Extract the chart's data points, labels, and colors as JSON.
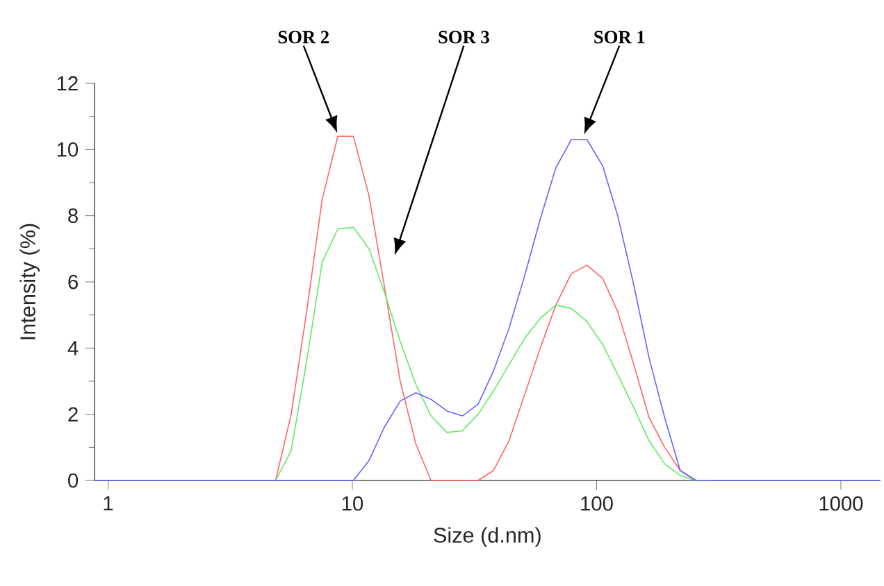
{
  "chart_data": {
    "type": "line",
    "xlabel": "Size (d.nm)",
    "ylabel": "Intensity (%)",
    "log": "x",
    "xlim": [
      0.88,
      1450
    ],
    "xticks": [
      1,
      10,
      100,
      1000
    ],
    "ylim": [
      0,
      12
    ],
    "yticks": [
      0,
      2,
      4,
      6,
      8,
      10,
      12
    ],
    "series": [
      {
        "color": "#ff6464",
        "x": [
          4.85,
          5.62,
          6.5,
          7.53,
          8.72,
          10.1,
          11.7,
          13.5,
          15.7,
          18.2,
          21.0,
          24.4,
          28.2,
          32.7,
          37.8,
          43.8,
          50.8,
          58.8,
          68.1,
          78.8,
          91.3,
          106,
          122,
          142,
          164,
          190,
          220,
          255
        ],
        "values": [
          0,
          2.0,
          5.1,
          8.5,
          10.4,
          10.4,
          8.6,
          5.9,
          3.0,
          1.1,
          0,
          0,
          0,
          0,
          0.3,
          1.2,
          2.6,
          4.0,
          5.3,
          6.25,
          6.5,
          6.1,
          5.1,
          3.5,
          1.9,
          1.0,
          0.3,
          0
        ]
      },
      {
        "color": "#64e864",
        "x": [
          4.85,
          5.62,
          6.5,
          7.53,
          8.72,
          10.1,
          11.7,
          13.5,
          15.7,
          18.2,
          21.0,
          24.4,
          28.2,
          32.7,
          37.8,
          43.8,
          50.8,
          58.8,
          68.1,
          78.8,
          91.3,
          106,
          122,
          142,
          164,
          190,
          220,
          255,
          295
        ],
        "values": [
          0,
          0.9,
          3.6,
          6.6,
          7.6,
          7.65,
          7.0,
          5.7,
          4.2,
          2.9,
          1.95,
          1.45,
          1.5,
          2.0,
          2.7,
          3.5,
          4.3,
          4.9,
          5.3,
          5.2,
          4.8,
          4.1,
          3.2,
          2.2,
          1.2,
          0.5,
          0.15,
          0,
          0
        ]
      },
      {
        "color": "#6464ff",
        "x": [
          0.88,
          4.2,
          4.85,
          5.62,
          6.5,
          7.53,
          8.72,
          10.1,
          11.7,
          13.5,
          15.7,
          18.2,
          21.0,
          24.4,
          28.2,
          32.7,
          37.8,
          43.8,
          50.8,
          58.8,
          68.1,
          78.8,
          91.3,
          106,
          122,
          142,
          164,
          190,
          220,
          255,
          295,
          342,
          1450
        ],
        "values": [
          0,
          0,
          0,
          0,
          0,
          0,
          0,
          0,
          0.6,
          1.6,
          2.4,
          2.65,
          2.45,
          2.1,
          1.95,
          2.3,
          3.3,
          4.6,
          6.2,
          7.9,
          9.45,
          10.3,
          10.3,
          9.5,
          8.0,
          5.9,
          3.7,
          1.9,
          0.3,
          0,
          0,
          0,
          0
        ]
      }
    ],
    "annotations": [
      "SOR 2",
      "SOR 3",
      "SOR 1"
    ]
  }
}
